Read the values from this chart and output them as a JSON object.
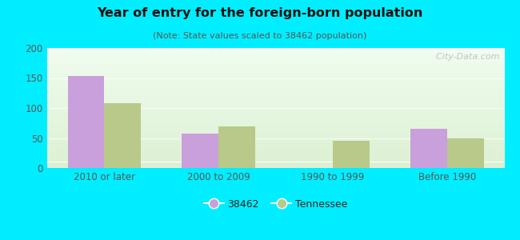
{
  "title": "Year of entry for the foreign-born population",
  "subtitle": "(Note: State values scaled to 38462 population)",
  "categories": [
    "2010 or later",
    "2000 to 2009",
    "1990 to 1999",
    "Before 1990"
  ],
  "values_38462": [
    154,
    57,
    0,
    65
  ],
  "values_tennessee": [
    108,
    70,
    46,
    49
  ],
  "bar_color_38462": "#c9a0dc",
  "bar_color_tennessee": "#b8c98a",
  "background_outer": "#00eeff",
  "background_inner_top": "#eaf5e8",
  "background_inner_bottom": "#d8edd0",
  "ylim": [
    0,
    200
  ],
  "yticks": [
    0,
    50,
    100,
    150,
    200
  ],
  "bar_width": 0.32,
  "legend_label_38462": "38462",
  "legend_label_tennessee": "Tennessee",
  "watermark": "  City-Data.com",
  "title_color": "#111111",
  "subtitle_color": "#555555",
  "tick_color": "#555555"
}
